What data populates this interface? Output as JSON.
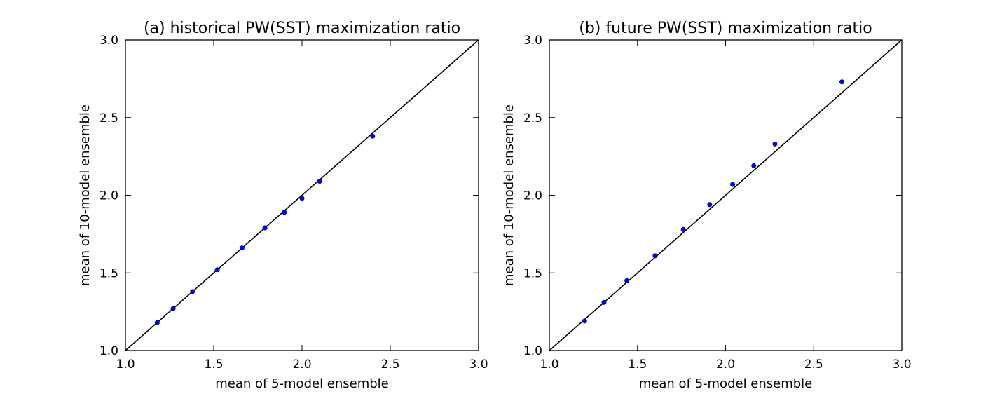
{
  "chart_data": [
    {
      "type": "scatter",
      "title": "(a) historical PW(SST) maximization ratio",
      "xlabel": "mean of 5-model ensemble",
      "ylabel": "mean of 10-model ensemble",
      "xlim": [
        1.0,
        3.0
      ],
      "ylim": [
        1.0,
        3.0
      ],
      "xticks": [
        "1.0",
        "1.5",
        "2.0",
        "2.5",
        "3.0"
      ],
      "yticks": [
        "1.0",
        "1.5",
        "2.0",
        "2.5",
        "3.0"
      ],
      "reference_line": "y=x",
      "grid": false,
      "marker_color": "#0000ff",
      "points": [
        {
          "x": 1.18,
          "y": 1.18
        },
        {
          "x": 1.27,
          "y": 1.27
        },
        {
          "x": 1.38,
          "y": 1.38
        },
        {
          "x": 1.52,
          "y": 1.52
        },
        {
          "x": 1.66,
          "y": 1.66
        },
        {
          "x": 1.79,
          "y": 1.79
        },
        {
          "x": 1.9,
          "y": 1.89
        },
        {
          "x": 2.0,
          "y": 1.98
        },
        {
          "x": 2.1,
          "y": 2.09
        },
        {
          "x": 2.4,
          "y": 2.38
        }
      ]
    },
    {
      "type": "scatter",
      "title": "(b) future PW(SST) maximization ratio",
      "xlabel": "mean of 5-model ensemble",
      "ylabel": "mean of 10-model ensemble",
      "xlim": [
        1.0,
        3.0
      ],
      "ylim": [
        1.0,
        3.0
      ],
      "xticks": [
        "1.0",
        "1.5",
        "2.0",
        "2.5",
        "3.0"
      ],
      "yticks": [
        "1.0",
        "1.5",
        "2.0",
        "2.5",
        "3.0"
      ],
      "reference_line": "y=x",
      "grid": false,
      "marker_color": "#0000ff",
      "points": [
        {
          "x": 1.2,
          "y": 1.19
        },
        {
          "x": 1.31,
          "y": 1.31
        },
        {
          "x": 1.44,
          "y": 1.45
        },
        {
          "x": 1.6,
          "y": 1.61
        },
        {
          "x": 1.76,
          "y": 1.78
        },
        {
          "x": 1.91,
          "y": 1.94
        },
        {
          "x": 2.04,
          "y": 2.07
        },
        {
          "x": 2.16,
          "y": 2.19
        },
        {
          "x": 2.28,
          "y": 2.33
        },
        {
          "x": 2.66,
          "y": 2.73
        }
      ]
    }
  ]
}
